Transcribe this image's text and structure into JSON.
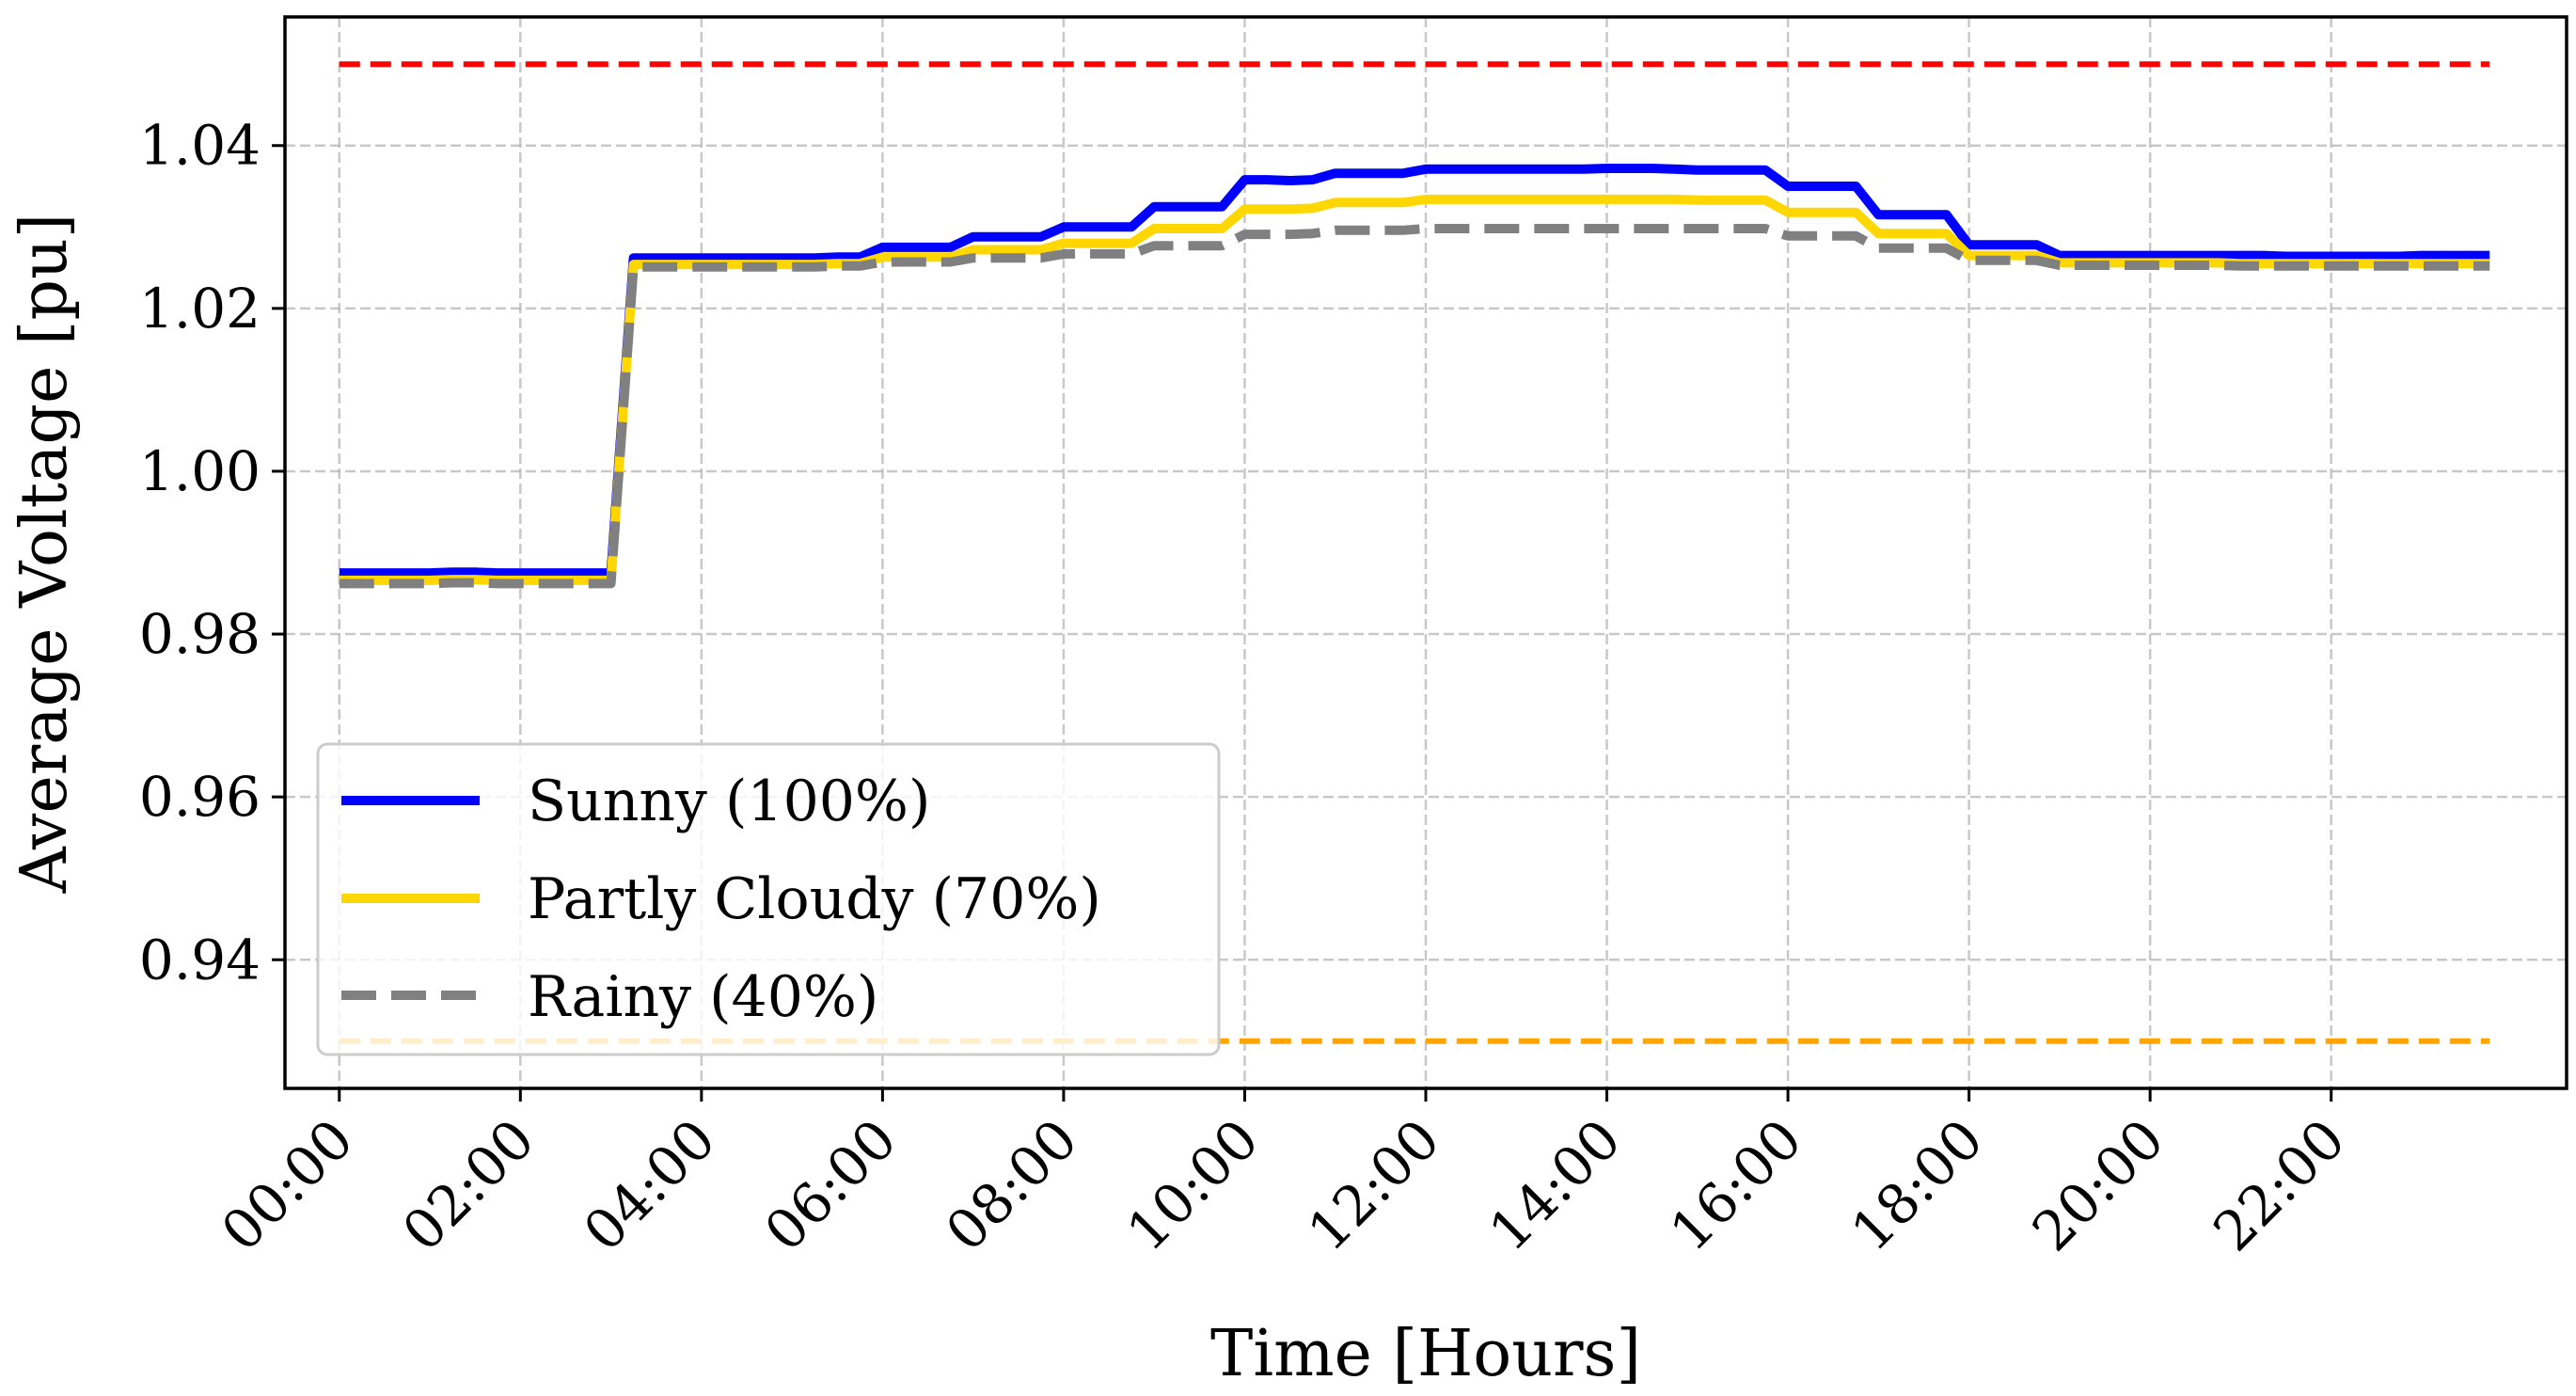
{
  "chart_data": {
    "type": "line",
    "title": "",
    "xlabel": "Time [Hours]",
    "ylabel": "Average Voltage [pu]",
    "xlim": [
      -0.6,
      24.6
    ],
    "ylim": [
      0.9242,
      1.0558
    ],
    "x_ticks": [
      0,
      2,
      4,
      6,
      8,
      10,
      12,
      14,
      16,
      18,
      20,
      22
    ],
    "x_tick_labels": [
      "00:00",
      "02:00",
      "04:00",
      "06:00",
      "08:00",
      "10:00",
      "12:00",
      "14:00",
      "16:00",
      "18:00",
      "20:00",
      "22:00"
    ],
    "y_ticks": [
      0.94,
      0.96,
      0.98,
      1.0,
      1.02,
      1.04
    ],
    "y_tick_labels": [
      "0.94",
      "0.96",
      "0.98",
      "1.00",
      "1.02",
      "1.04"
    ],
    "grid": true,
    "legend_position": "lower-left",
    "x": [
      0,
      0.25,
      0.5,
      0.75,
      1,
      1.25,
      1.5,
      1.75,
      2,
      2.25,
      2.5,
      2.75,
      3,
      3.25,
      3.5,
      3.75,
      4,
      4.25,
      4.5,
      4.75,
      5,
      5.25,
      5.5,
      5.75,
      6,
      6.25,
      6.5,
      6.75,
      7,
      7.25,
      7.5,
      7.75,
      8,
      8.25,
      8.5,
      8.75,
      9,
      9.25,
      9.5,
      9.75,
      10,
      10.25,
      10.5,
      10.75,
      11,
      11.25,
      11.5,
      11.75,
      12,
      12.25,
      12.5,
      12.75,
      13,
      13.25,
      13.5,
      13.75,
      14,
      14.25,
      14.5,
      14.75,
      15,
      15.25,
      15.5,
      15.75,
      16,
      16.25,
      16.5,
      16.75,
      17,
      17.25,
      17.5,
      17.75,
      18,
      18.25,
      18.5,
      18.75,
      19,
      19.25,
      19.5,
      19.75,
      20,
      20.25,
      20.5,
      20.75,
      21,
      21.25,
      21.5,
      21.75,
      22,
      22.25,
      22.5,
      22.75,
      23,
      23.25,
      23.5,
      23.75
    ],
    "series": [
      {
        "name": "Sunny (100%)",
        "color": "#0000ff",
        "dash": "solid",
        "values": [
          0.9875,
          0.9875,
          0.9875,
          0.9875,
          0.9875,
          0.9876,
          0.9876,
          0.9875,
          0.9875,
          0.9875,
          0.9875,
          0.9875,
          0.9875,
          1.0262,
          1.0262,
          1.0262,
          1.0262,
          1.0262,
          1.0262,
          1.0262,
          1.0262,
          1.0262,
          1.0263,
          1.0263,
          1.0275,
          1.0275,
          1.0275,
          1.0275,
          1.0288,
          1.0288,
          1.0288,
          1.0288,
          1.03,
          1.03,
          1.03,
          1.03,
          1.0325,
          1.0325,
          1.0325,
          1.0325,
          1.0358,
          1.0358,
          1.0357,
          1.0358,
          1.0366,
          1.0366,
          1.0366,
          1.0366,
          1.0371,
          1.0371,
          1.0371,
          1.0371,
          1.0371,
          1.0371,
          1.0371,
          1.0371,
          1.0372,
          1.0372,
          1.0372,
          1.0371,
          1.037,
          1.037,
          1.037,
          1.037,
          1.035,
          1.035,
          1.035,
          1.035,
          1.0315,
          1.0315,
          1.0315,
          1.0315,
          1.0278,
          1.0278,
          1.0278,
          1.0278,
          1.0265,
          1.0265,
          1.0265,
          1.0265,
          1.0265,
          1.0265,
          1.0265,
          1.0265,
          1.0265,
          1.0265,
          1.0264,
          1.0264,
          1.0264,
          1.0264,
          1.0264,
          1.0264,
          1.0265,
          1.0265,
          1.0265,
          1.0265
        ]
      },
      {
        "name": "Partly Cloudy (70%)",
        "color": "#ffd700",
        "dash": "solid",
        "values": [
          0.9866,
          0.9866,
          0.9866,
          0.9866,
          0.9866,
          0.9867,
          0.9867,
          0.9866,
          0.9866,
          0.9866,
          0.9866,
          0.9866,
          0.9866,
          1.0254,
          1.0254,
          1.0254,
          1.0254,
          1.0254,
          1.0254,
          1.0254,
          1.0254,
          1.0254,
          1.0255,
          1.0255,
          1.0263,
          1.0263,
          1.0263,
          1.0263,
          1.0272,
          1.0272,
          1.0272,
          1.0272,
          1.028,
          1.028,
          1.028,
          1.028,
          1.0298,
          1.0298,
          1.0298,
          1.0298,
          1.0322,
          1.0322,
          1.0322,
          1.0323,
          1.033,
          1.033,
          1.033,
          1.033,
          1.0334,
          1.0334,
          1.0334,
          1.0334,
          1.0334,
          1.0334,
          1.0334,
          1.0334,
          1.0334,
          1.0334,
          1.0334,
          1.0334,
          1.0333,
          1.0333,
          1.0333,
          1.0333,
          1.0318,
          1.0318,
          1.0318,
          1.0318,
          1.0292,
          1.0292,
          1.0292,
          1.0292,
          1.0265,
          1.0265,
          1.0265,
          1.0265,
          1.0256,
          1.0256,
          1.0256,
          1.0256,
          1.0256,
          1.0256,
          1.0256,
          1.0256,
          1.0255,
          1.0255,
          1.0255,
          1.0255,
          1.0255,
          1.0255,
          1.0255,
          1.0255,
          1.0255,
          1.0255,
          1.0255,
          1.0255
        ]
      },
      {
        "name": "Rainy (40%)",
        "color": "#808080",
        "dash": "dashed",
        "values": [
          0.9862,
          0.9862,
          0.9862,
          0.9862,
          0.9862,
          0.9863,
          0.9863,
          0.9862,
          0.9862,
          0.9862,
          0.9862,
          0.9862,
          0.9862,
          1.0251,
          1.0251,
          1.0251,
          1.0251,
          1.0251,
          1.0251,
          1.0251,
          1.0251,
          1.0251,
          1.0252,
          1.0252,
          1.0257,
          1.0257,
          1.0257,
          1.0257,
          1.0262,
          1.0262,
          1.0262,
          1.0262,
          1.0267,
          1.0267,
          1.0267,
          1.0267,
          1.0277,
          1.0277,
          1.0277,
          1.0277,
          1.0291,
          1.0291,
          1.0291,
          1.0292,
          1.0296,
          1.0296,
          1.0296,
          1.0296,
          1.0298,
          1.0298,
          1.0298,
          1.0298,
          1.0298,
          1.0298,
          1.0298,
          1.0298,
          1.0298,
          1.0298,
          1.0298,
          1.0298,
          1.0298,
          1.0298,
          1.0298,
          1.0298,
          1.0289,
          1.0289,
          1.0289,
          1.0289,
          1.0274,
          1.0274,
          1.0274,
          1.0274,
          1.0259,
          1.0259,
          1.0259,
          1.0259,
          1.0253,
          1.0253,
          1.0253,
          1.0253,
          1.0253,
          1.0253,
          1.0253,
          1.0253,
          1.0252,
          1.0252,
          1.0252,
          1.0252,
          1.0252,
          1.0252,
          1.0252,
          1.0252,
          1.0252,
          1.0252,
          1.0252,
          1.0252
        ]
      }
    ],
    "reference_lines": [
      {
        "y": 1.05,
        "color": "#ff0000",
        "dash": "dashed",
        "x_range": [
          0,
          23.75
        ]
      },
      {
        "y": 0.93,
        "color": "#ffa500",
        "dash": "dashed",
        "x_range": [
          0,
          23.75
        ]
      }
    ]
  }
}
